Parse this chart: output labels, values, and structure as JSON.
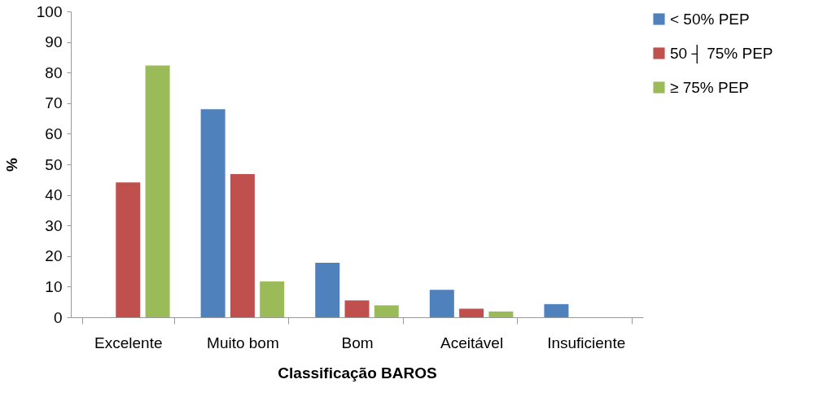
{
  "chart_data": {
    "type": "bar",
    "xlabel": "Classificação BAROS",
    "ylabel": "%",
    "categories": [
      "Excelente",
      "Muito bom",
      "Bom",
      "Aceitável",
      "Insuficiente"
    ],
    "series": [
      {
        "name": "< 50% PEP",
        "color": "#4f81bd",
        "values": [
          null,
          68.0,
          17.8,
          9.0,
          4.3
        ]
      },
      {
        "name": "50 ┤ 75% PEP",
        "color": "#c0504d",
        "values": [
          44.1,
          46.8,
          5.5,
          2.8,
          null
        ]
      },
      {
        "name": "≥ 75% PEP",
        "color": "#9bbb59",
        "values": [
          82.3,
          11.7,
          3.9,
          1.9,
          null
        ]
      }
    ],
    "ylim": [
      0,
      100
    ],
    "yticks": [
      0,
      10,
      20,
      30,
      40,
      50,
      60,
      70,
      80,
      90,
      100
    ],
    "grid": false,
    "legend": "right"
  }
}
